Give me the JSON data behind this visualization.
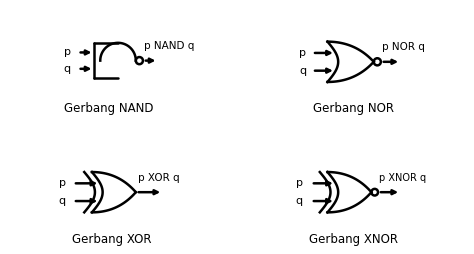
{
  "bg_color": "#ffffff",
  "line_color": "#000000",
  "lw": 1.8,
  "labels": {
    "nand_title": "Gerbang NAND",
    "nor_title": "Gerbang NOR",
    "xor_title": "Gerbang XOR",
    "xnor_title": "Gerbang XNOR",
    "nand_out": "p NAND q",
    "nor_out": "p NOR q",
    "xor_out": "p XOR q",
    "xnor_out": "p XNOR q"
  },
  "font_size_label": 8,
  "font_size_title": 8.5
}
